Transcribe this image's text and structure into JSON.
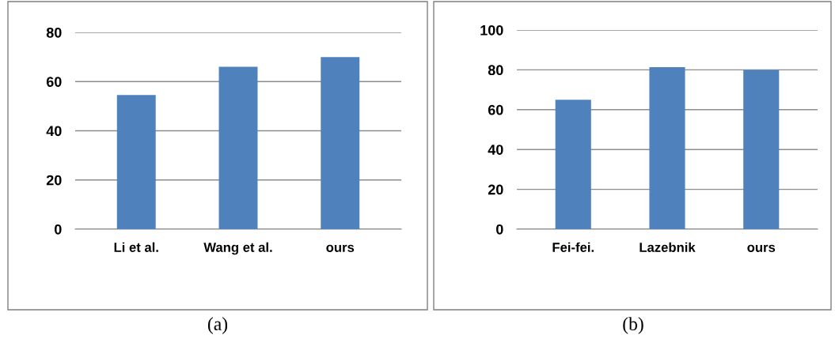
{
  "chart_data": [
    {
      "type": "bar",
      "categories": [
        "Li et al.",
        "Wang et al.",
        "ours"
      ],
      "values": [
        54.5,
        66,
        70
      ],
      "color": "#4f81bd",
      "ylim": [
        0,
        80
      ],
      "yticks": [
        0,
        20,
        40,
        60,
        80
      ],
      "grid": "y",
      "annotations": [
        "(a)"
      ]
    },
    {
      "type": "bar",
      "categories": [
        "Fei-fei.",
        "Lazebnik",
        "ours"
      ],
      "values": [
        65,
        81.3,
        80
      ],
      "color": "#4f81bd",
      "ylim": [
        0,
        100
      ],
      "yticks": [
        0,
        20,
        40,
        60,
        80,
        100
      ],
      "grid": "y",
      "annotations": [
        "(b)"
      ]
    }
  ]
}
